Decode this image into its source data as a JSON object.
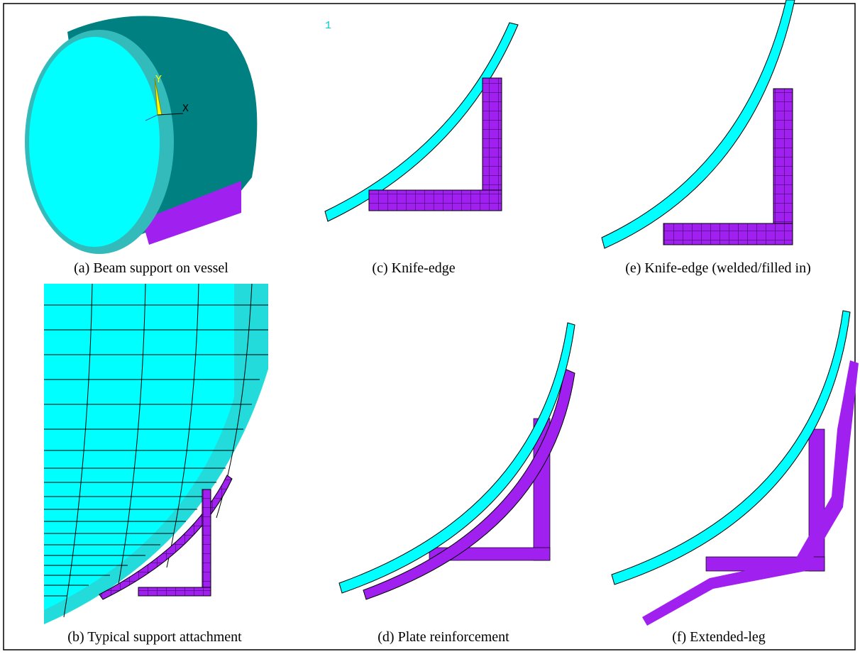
{
  "figure": {
    "panels": [
      {
        "caption": "(a) Beam support on vessel"
      },
      {
        "caption": "(c) Knife-edge"
      },
      {
        "caption": "(e) Knife-edge (welded/filled in)"
      },
      {
        "caption": "(b) Typical support attachment"
      },
      {
        "caption": "(d) Plate reinforcement"
      },
      {
        "caption": "(f) Extended-leg"
      }
    ],
    "triad": {
      "y_label": "Y",
      "x_label": "X"
    },
    "corner_label": "1"
  }
}
